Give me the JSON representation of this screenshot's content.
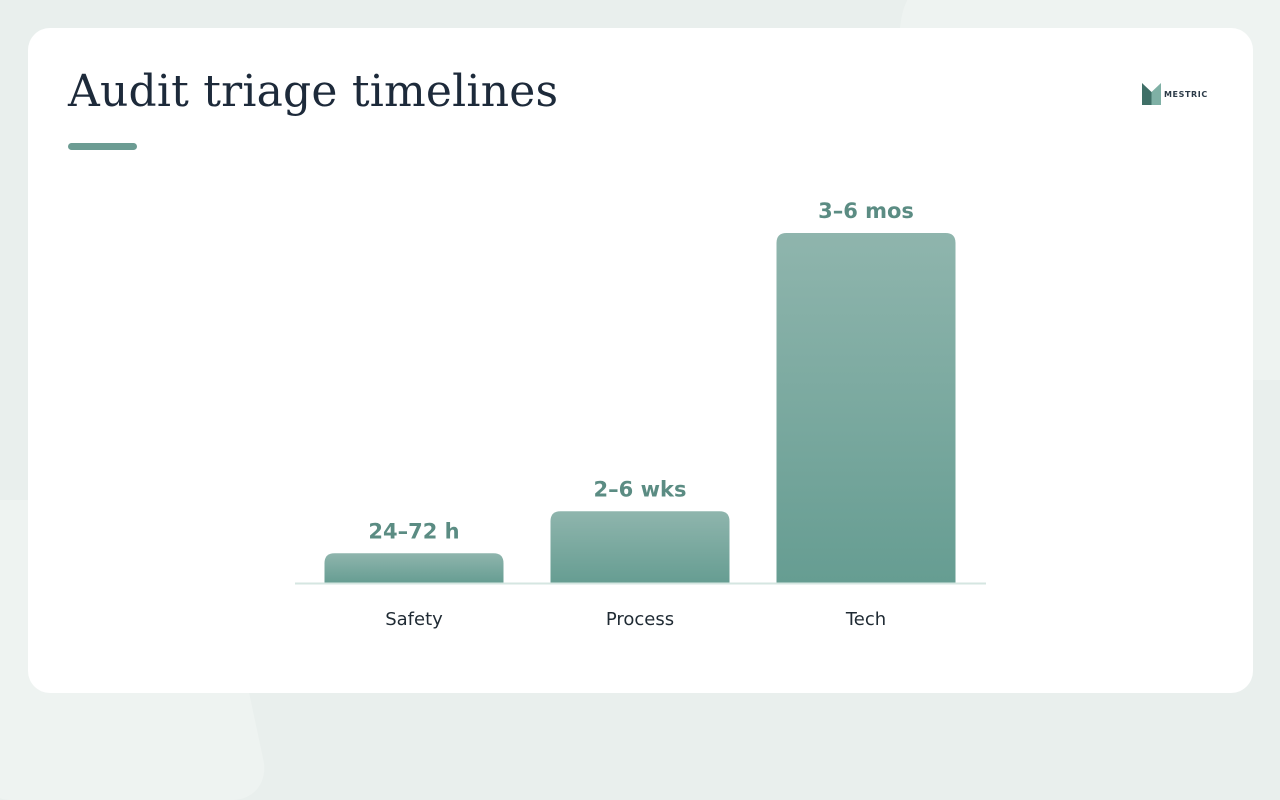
{
  "slide": {
    "title": "Audit triage timelines"
  },
  "logo": {
    "name": "MESTRIC",
    "tagline": ""
  },
  "colors": {
    "accent": "#6c9c93",
    "bar_top": "#8fb5ad",
    "bar_bottom": "#669d92",
    "label": "#5b8c83",
    "axis": "#d5e6e1",
    "category_text": "#1f2a33",
    "title_text": "#1d2a3a"
  },
  "chart_data": {
    "type": "bar",
    "title": "",
    "xlabel": "",
    "ylabel": "",
    "categories": [
      "Safety",
      "Process",
      "Tech"
    ],
    "values": [
      0.085,
      0.205,
      1.0
    ],
    "value_unit": "relative bar height (tallest bar = 1)",
    "data_labels": [
      "24–72 h",
      "2–6 wks",
      "3–6 mos"
    ],
    "ylim": [
      0,
      1
    ],
    "grid": false,
    "legend": "none"
  }
}
